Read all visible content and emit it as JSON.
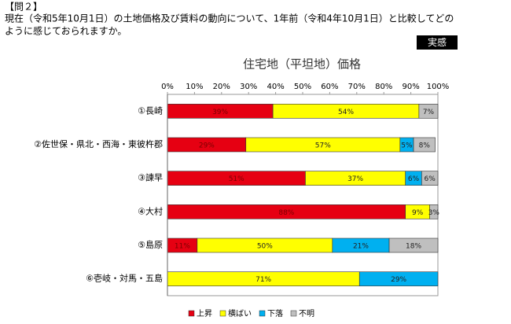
{
  "header": {
    "label": "【問２】",
    "question": [
      "現在（令和5年10月1日）の土地価格及び賃料の動向について、1年前（令和4年10月1日）と比較してどの",
      "ように感じておられますか。"
    ],
    "badge": "実感"
  },
  "chart_data": {
    "type": "stacked-barh",
    "title": "住宅地（平坦地）価格",
    "categories": [
      "①長崎",
      "②佐世保・県北・西海・東彼杵郡",
      "③諫早",
      "④大村",
      "⑤島原",
      "⑥壱岐・対馬・五島"
    ],
    "series": [
      {
        "name": "上昇",
        "color": "#e60012",
        "values": [
          39,
          29,
          51,
          88,
          11,
          null
        ],
        "value_labels": [
          "39%",
          "29%",
          "51%",
          "88%",
          "11%",
          null
        ]
      },
      {
        "name": "横ばい",
        "color": "#ffff00",
        "values": [
          54,
          57,
          37,
          9,
          50,
          71
        ],
        "value_labels": [
          "54%",
          "57%",
          "37%",
          "9%",
          "50%",
          "71%"
        ]
      },
      {
        "name": "下落",
        "color": "#00b0f0",
        "values": [
          null,
          5,
          6,
          null,
          21,
          29
        ],
        "value_labels": [
          null,
          "5%",
          "6%",
          null,
          "21%",
          "29%"
        ]
      },
      {
        "name": "不明",
        "color": "#bfbfbf",
        "values": [
          7,
          8,
          6,
          3,
          18,
          null
        ],
        "value_labels": [
          "7%",
          "8%",
          "6%",
          "3%",
          "18%",
          null
        ]
      }
    ],
    "xlim": [
      0,
      100
    ],
    "xticks": [
      {
        "value": 0,
        "label": "0%"
      },
      {
        "value": 10,
        "label": "10%"
      },
      {
        "value": 20,
        "label": "20%"
      },
      {
        "value": 30,
        "label": "30%"
      },
      {
        "value": 40,
        "label": "40%"
      },
      {
        "value": 50,
        "label": "50%"
      },
      {
        "value": 60,
        "label": "60%"
      },
      {
        "value": 70,
        "label": "70%"
      },
      {
        "value": 80,
        "label": "80%"
      },
      {
        "value": 90,
        "label": "90%"
      },
      {
        "value": 100,
        "label": "100%"
      }
    ],
    "legend": "bottom"
  }
}
